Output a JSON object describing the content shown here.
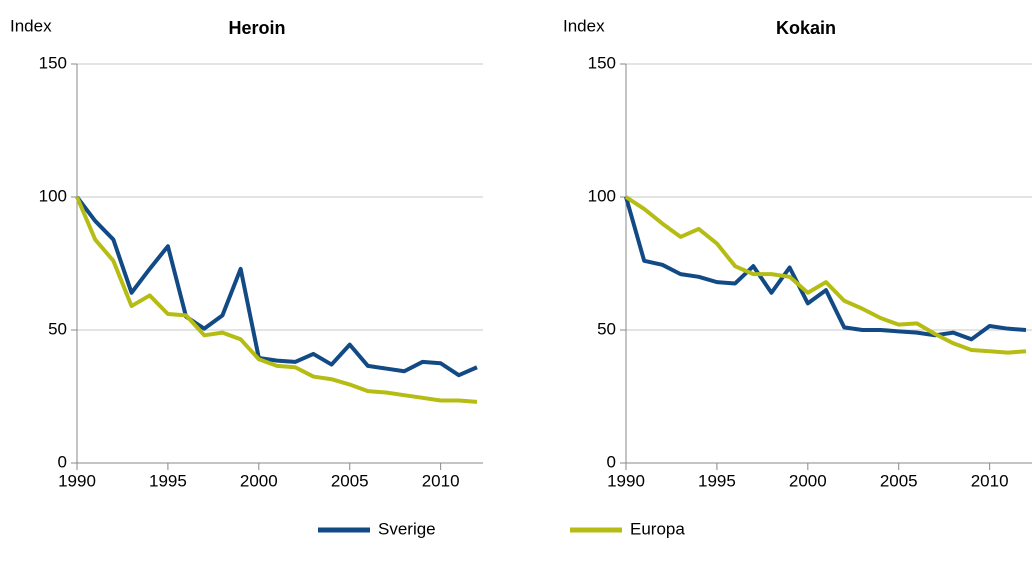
{
  "chart_data": [
    {
      "type": "line",
      "title": "Heroin",
      "y_label": "Index",
      "x": [
        1990,
        1991,
        1992,
        1993,
        1994,
        1995,
        1996,
        1997,
        1998,
        1999,
        2000,
        2001,
        2002,
        2003,
        2004,
        2005,
        2006,
        2007,
        2008,
        2009,
        2010,
        2011,
        2012
      ],
      "series": [
        {
          "name": "Sverige",
          "color": "#124a85",
          "values": [
            100,
            91,
            84,
            64,
            73,
            81.5,
            55,
            50.5,
            55.5,
            73,
            39.5,
            38.5,
            38,
            41,
            37,
            44.5,
            36.5,
            35.5,
            34.5,
            38,
            37.5,
            33,
            36
          ]
        },
        {
          "name": "Europa",
          "color": "#b5bd14",
          "values": [
            100,
            84,
            76,
            59,
            63,
            56,
            55.5,
            48,
            49,
            46.5,
            39,
            36.5,
            36,
            32.5,
            31.5,
            29.5,
            27,
            26.5,
            25.5,
            24.5,
            23.5,
            23.5,
            23
          ]
        }
      ],
      "xlim": [
        1990,
        2012
      ],
      "xticks": [
        1990,
        1995,
        2000,
        2005,
        2010
      ],
      "ylim": [
        0,
        150
      ],
      "yticks": [
        0,
        50,
        100,
        150
      ],
      "grid": true
    },
    {
      "type": "line",
      "title": "Kokain",
      "y_label": "Index",
      "x": [
        1990,
        1991,
        1992,
        1993,
        1994,
        1995,
        1996,
        1997,
        1998,
        1999,
        2000,
        2001,
        2002,
        2003,
        2004,
        2005,
        2006,
        2007,
        2008,
        2009,
        2010,
        2011,
        2012
      ],
      "series": [
        {
          "name": "Sverige",
          "color": "#124a85",
          "values": [
            100,
            76,
            74.5,
            71,
            70,
            68,
            67.5,
            74,
            64,
            73.5,
            60,
            65,
            51,
            50,
            50,
            49.5,
            49,
            48,
            49,
            46.5,
            51.5,
            50.5,
            50
          ]
        },
        {
          "name": "Europa",
          "color": "#b5bd14",
          "values": [
            100,
            95.5,
            90,
            85,
            88,
            82.5,
            74,
            71,
            71,
            70,
            64,
            68,
            61,
            58,
            54.5,
            52,
            52.5,
            48.5,
            45,
            42.5,
            42,
            41.5,
            42
          ]
        }
      ],
      "xlim": [
        1990,
        2012
      ],
      "xticks": [
        1990,
        1995,
        2000,
        2005,
        2010
      ],
      "ylim": [
        0,
        150
      ],
      "yticks": [
        0,
        50,
        100,
        150
      ],
      "grid": true
    }
  ]
}
